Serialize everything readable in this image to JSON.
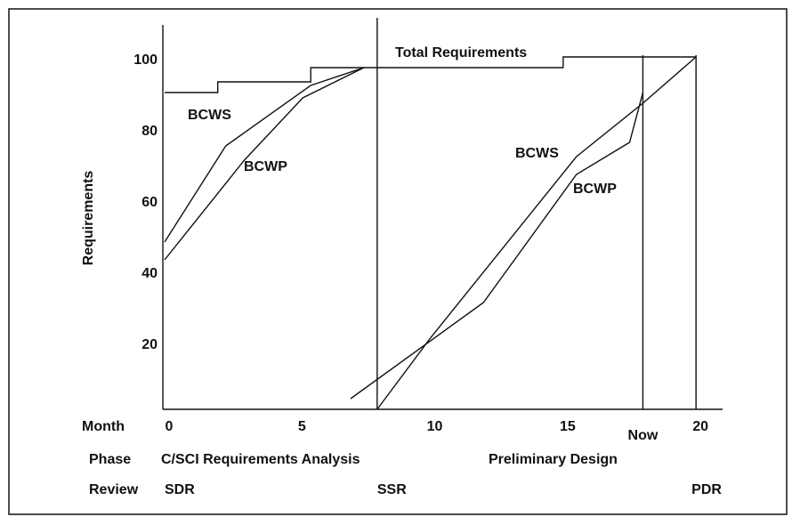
{
  "chart_data": {
    "type": "line",
    "y_label": "Requirements",
    "row_labels": [
      "Month",
      "Phase",
      "Review"
    ],
    "phases": [
      "C/SCI Requirements Analysis",
      "Preliminary Design"
    ],
    "reviews": [
      {
        "x": 0,
        "label": "SDR"
      },
      {
        "x": 8,
        "label": "SSR"
      },
      {
        "x": 20,
        "label": "PDR"
      }
    ],
    "now": {
      "x": 18,
      "label": "Now"
    },
    "annotations": [
      "BCWS",
      "BCWP",
      "BCWS",
      "BCWP"
    ],
    "xlim": [
      -0.1,
      21
    ],
    "xticks": [
      0,
      5,
      10,
      15,
      20
    ],
    "ylim": [
      2,
      110
    ],
    "yticks": [
      20,
      40,
      60,
      80,
      100
    ],
    "color": "#111111",
    "series": [
      {
        "name": "Total Requirements",
        "x": [
          0,
          2,
          2,
          5.5,
          5.5,
          15,
          15,
          20
        ],
        "values": [
          91,
          91,
          94,
          94,
          98,
          98,
          101,
          101
        ]
      },
      {
        "name": "BCWS",
        "x": [
          0,
          2.3,
          5.5,
          7.5,
          7.7,
          8,
          10,
          15.5,
          18,
          20
        ],
        "values": [
          49,
          76,
          93,
          98,
          null,
          2,
          22,
          73,
          88,
          101
        ]
      },
      {
        "name": "BCWP",
        "x": [
          0,
          3,
          5.2,
          7.5,
          7.55,
          7,
          12,
          15.5,
          17.5,
          18
        ],
        "values": [
          44,
          72,
          89.5,
          98,
          null,
          5,
          32,
          68,
          77,
          91
        ]
      }
    ]
  }
}
